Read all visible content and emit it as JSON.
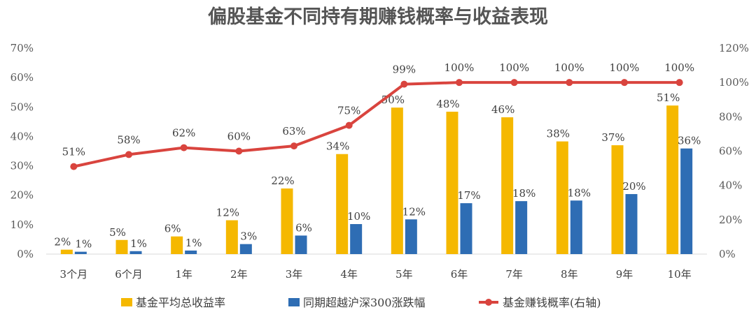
{
  "chart_data": {
    "type": "bar",
    "title": "偏股基金不同持有期赚钱概率与收益表现",
    "categories": [
      "3个月",
      "6个月",
      "1年",
      "2年",
      "3年",
      "4年",
      "5年",
      "6年",
      "7年",
      "8年",
      "9年",
      "10年"
    ],
    "y_left": {
      "min": 0,
      "max": 70,
      "step": 10,
      "tick_labels": [
        "0%",
        "10%",
        "20%",
        "30%",
        "40%",
        "50%",
        "60%",
        "70%"
      ]
    },
    "y_right": {
      "min": 0,
      "max": 120,
      "step": 20,
      "tick_labels": [
        "0%",
        "20%",
        "40%",
        "60%",
        "80%",
        "100%",
        "120%"
      ]
    },
    "series": [
      {
        "name": "基金平均总收益率",
        "kind": "bar",
        "axis": "left",
        "color": "#F5B800",
        "values": [
          1.5,
          4.8,
          6.0,
          11.5,
          22.3,
          34.0,
          49.8,
          48.4,
          46.5,
          38.3,
          37.0,
          50.5
        ],
        "labels": [
          "2%",
          "5%",
          "6%",
          "12%",
          "22%",
          "34%",
          "50%",
          "48%",
          "46%",
          "38%",
          "37%",
          "51%"
        ]
      },
      {
        "name": "同期超越沪深300涨跌幅",
        "kind": "bar",
        "axis": "left",
        "color": "#2E6DB4",
        "values": [
          0.8,
          1.0,
          1.2,
          3.4,
          6.3,
          10.2,
          11.8,
          17.3,
          18.0,
          18.2,
          20.4,
          35.9
        ],
        "labels": [
          "1%",
          "1%",
          "1%",
          "3%",
          "6%",
          "10%",
          "12%",
          "17%",
          "18%",
          "18%",
          "20%",
          "36%"
        ]
      },
      {
        "name": "基金赚钱概率(右轴)",
        "kind": "line",
        "axis": "right",
        "color": "#D9443E",
        "values": [
          51,
          58,
          62,
          60,
          63,
          75,
          99,
          100,
          100,
          100,
          100,
          100
        ],
        "labels": [
          "51%",
          "58%",
          "62%",
          "60%",
          "63%",
          "75%",
          "99%",
          "100%",
          "100%",
          "100%",
          "100%",
          "100%"
        ]
      }
    ],
    "legend_position": "bottom",
    "grid": false
  }
}
